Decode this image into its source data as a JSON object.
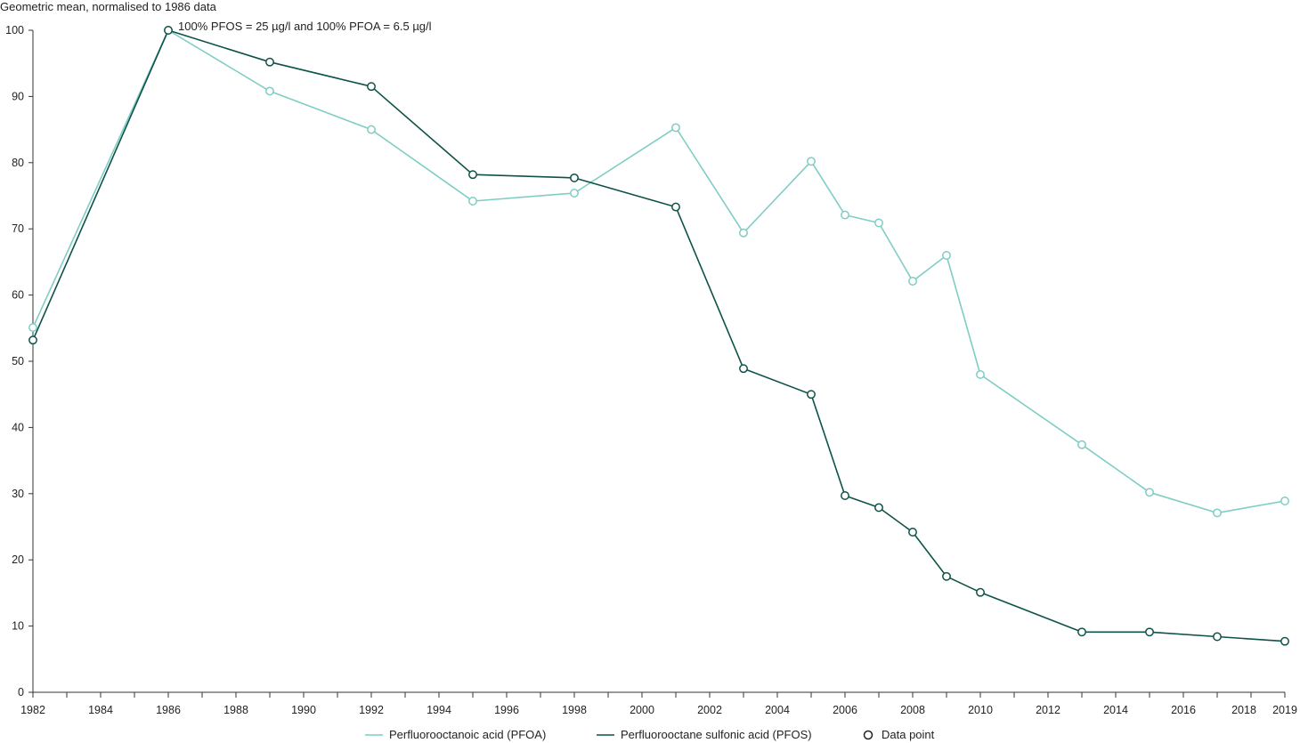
{
  "chart_data": {
    "type": "line",
    "ylabel": "Geometric mean, normalised to 1986 data",
    "annotation": "100% PFOS = 25 µg/l and 100% PFOA = 6.5 µg/l",
    "xlim": [
      1982,
      2019
    ],
    "ylim": [
      0,
      100
    ],
    "y_ticks": [
      0,
      10,
      20,
      30,
      40,
      50,
      60,
      70,
      80,
      90,
      100
    ],
    "x_tick_labels": [
      1982,
      1984,
      1986,
      1988,
      1990,
      1992,
      1994,
      1996,
      1998,
      2000,
      2002,
      2004,
      2006,
      2008,
      2010,
      2012,
      2014,
      2016,
      2018,
      2019
    ],
    "x_minor_ticks": [
      1982,
      1983,
      1984,
      1985,
      1986,
      1987,
      1988,
      1989,
      1990,
      1991,
      1992,
      1993,
      1994,
      1995,
      1996,
      1997,
      1998,
      1999,
      2000,
      2001,
      2002,
      2003,
      2004,
      2005,
      2006,
      2007,
      2008,
      2009,
      2010,
      2011,
      2012,
      2013,
      2014,
      2015,
      2016,
      2017,
      2018,
      2019
    ],
    "grid": false,
    "legend_position": "bottom",
    "marker_legend_label": "Data point",
    "series": [
      {
        "name": "Perfluorooctanoic acid (PFOA)",
        "color": "#7fcdc4",
        "x": [
          1982,
          1986,
          1989,
          1992,
          1995,
          1998,
          2001,
          2003,
          2005,
          2006,
          2007,
          2008,
          2009,
          2010,
          2013,
          2015,
          2017,
          2019
        ],
        "y": [
          55.1,
          100,
          90.8,
          85.0,
          74.2,
          75.4,
          85.3,
          69.4,
          80.2,
          72.1,
          70.9,
          62.1,
          66.0,
          48.0,
          37.4,
          30.2,
          27.1,
          28.9
        ]
      },
      {
        "name": "Perfluorooctane sulfonic acid (PFOS)",
        "color": "#0e5249",
        "x": [
          1982,
          1986,
          1989,
          1992,
          1995,
          1998,
          2001,
          2003,
          2005,
          2006,
          2007,
          2008,
          2009,
          2010,
          2013,
          2015,
          2017,
          2019
        ],
        "y": [
          53.2,
          100,
          95.2,
          91.5,
          78.2,
          77.7,
          73.3,
          48.9,
          45.0,
          29.7,
          27.9,
          24.2,
          17.5,
          15.1,
          9.1,
          9.1,
          8.4,
          7.7
        ]
      }
    ]
  }
}
